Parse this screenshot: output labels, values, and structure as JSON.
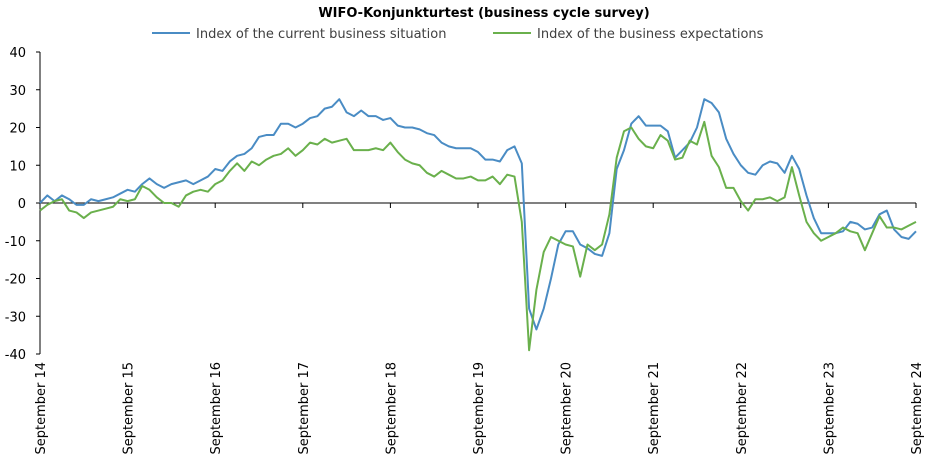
{
  "chart_data": {
    "type": "line",
    "title": "WIFO-Konjunkturtest (business cycle survey)",
    "xlabel": "",
    "ylabel": "",
    "ylim": [
      -40,
      40
    ],
    "yticks": [
      -40,
      -30,
      -20,
      -10,
      0,
      10,
      20,
      30,
      40
    ],
    "x_tick_labels": [
      "September 14",
      "September 15",
      "September 16",
      "September 17",
      "September 18",
      "September 19",
      "September 20",
      "September 21",
      "September 22",
      "September 23",
      "September 24"
    ],
    "x_start": "2014-09",
    "x_end": "2024-09",
    "grid": false,
    "legend_position": "top",
    "colors": {
      "current": "#4a8cc4",
      "expectations": "#6ab04c",
      "axis": "#000000"
    },
    "series": [
      {
        "name": "Index of the current business situation",
        "values": [
          0.0,
          2.0,
          0.5,
          2.0,
          1.0,
          -0.5,
          -0.5,
          1.0,
          0.5,
          1.0,
          1.5,
          2.5,
          3.5,
          3.0,
          5.0,
          6.5,
          5.0,
          4.0,
          5.0,
          5.5,
          6.0,
          5.0,
          6.0,
          7.0,
          9.0,
          8.5,
          11.0,
          12.5,
          13.0,
          14.5,
          17.5,
          18.0,
          18.0,
          21.0,
          21.0,
          20.0,
          21.0,
          22.5,
          23.0,
          25.0,
          25.5,
          27.5,
          24.0,
          23.0,
          24.5,
          23.0,
          23.0,
          22.0,
          22.5,
          20.5,
          20.0,
          20.0,
          19.5,
          18.5,
          18.0,
          16.0,
          15.0,
          14.5,
          14.5,
          14.5,
          13.5,
          11.5,
          11.5,
          11.0,
          14.0,
          15.0,
          10.5,
          -28.0,
          -33.5,
          -28.0,
          -20.0,
          -11.0,
          -7.5,
          -7.5,
          -11.0,
          -12.0,
          -13.5,
          -14.0,
          -8.0,
          9.0,
          14.0,
          21.0,
          23.0,
          20.5,
          20.5,
          20.5,
          19.0,
          12.0,
          14.0,
          16.0,
          20.0,
          27.5,
          26.5,
          24.0,
          17.0,
          13.0,
          10.0,
          8.0,
          7.5,
          10.0,
          11.0,
          10.5,
          8.0,
          12.5,
          9.0,
          2.0,
          -4.0,
          -8.0,
          -8.0,
          -8.0,
          -7.5,
          -5.0,
          -5.5,
          -7.0,
          -6.5,
          -3.0,
          -2.0,
          -7.0,
          -9.0,
          -9.5,
          -7.5
        ]
      },
      {
        "name": "Index of the business expectations",
        "values": [
          -2.0,
          -0.5,
          0.5,
          1.0,
          -2.0,
          -2.5,
          -4.0,
          -2.5,
          -2.0,
          -1.5,
          -1.0,
          1.0,
          0.5,
          1.0,
          4.5,
          3.5,
          1.5,
          0.0,
          0.0,
          -1.0,
          2.0,
          3.0,
          3.5,
          3.0,
          5.0,
          6.0,
          8.5,
          10.5,
          8.5,
          11.0,
          10.0,
          11.5,
          12.5,
          13.0,
          14.5,
          12.5,
          14.0,
          16.0,
          15.5,
          17.0,
          16.0,
          16.5,
          17.0,
          14.0,
          14.0,
          14.0,
          14.5,
          14.0,
          16.0,
          13.5,
          11.5,
          10.5,
          10.0,
          8.0,
          7.0,
          8.5,
          7.5,
          6.5,
          6.5,
          7.0,
          6.0,
          6.0,
          7.0,
          5.0,
          7.5,
          7.0,
          -5.0,
          -39.0,
          -23.0,
          -13.0,
          -9.0,
          -10.0,
          -11.0,
          -11.5,
          -19.5,
          -11.0,
          -12.5,
          -11.0,
          -3.0,
          12.0,
          19.0,
          20.0,
          17.0,
          15.0,
          14.5,
          18.0,
          16.5,
          11.5,
          12.0,
          16.5,
          15.5,
          21.5,
          12.5,
          9.5,
          4.0,
          4.0,
          0.5,
          -2.0,
          1.0,
          1.0,
          1.5,
          0.5,
          1.5,
          9.5,
          2.0,
          -5.0,
          -8.0,
          -10.0,
          -9.0,
          -8.0,
          -6.5,
          -7.5,
          -8.0,
          -12.5,
          -8.0,
          -3.5,
          -6.5,
          -6.5,
          -7.0,
          -6.0,
          -5.0
        ]
      }
    ]
  }
}
